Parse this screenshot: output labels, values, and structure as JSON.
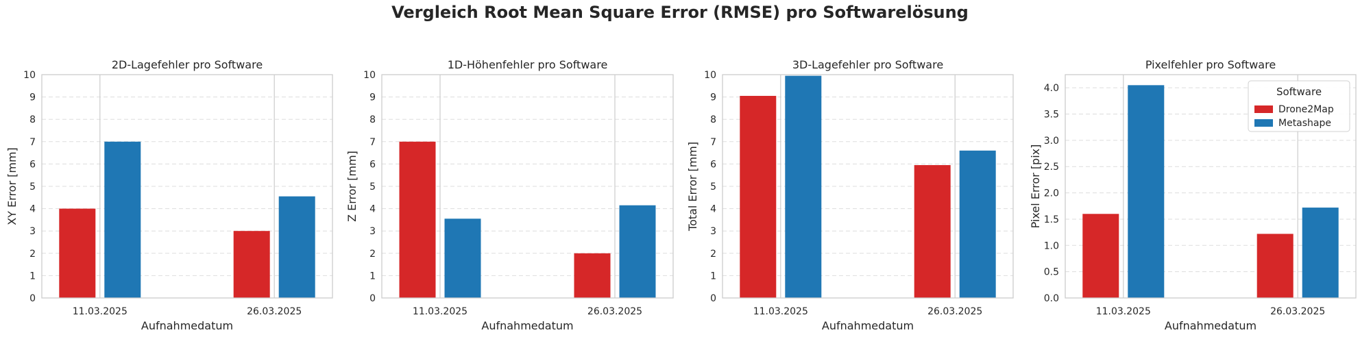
{
  "suptitle": "Vergleich Root Mean Square Error (RMSE) pro Softwarelösung",
  "colors": {
    "Drone2Map": "#d62728",
    "Metashape": "#1f77b4",
    "grid": "#dddddd",
    "axis": "#cccccc",
    "text": "#262626"
  },
  "legend": {
    "title": "Software",
    "entries": [
      "Drone2Map",
      "Metashape"
    ],
    "placement": "upper-right",
    "in_chart": 3
  },
  "chart_data": [
    {
      "type": "bar",
      "title": "2D-Lagefehler pro Software",
      "xlabel": "Aufnahmedatum",
      "ylabel": "XY Error [mm]",
      "categories": [
        "11.03.2025",
        "26.03.2025"
      ],
      "series": [
        {
          "name": "Drone2Map",
          "values": [
            4,
            3
          ]
        },
        {
          "name": "Metashape",
          "values": [
            7,
            4.55
          ]
        }
      ],
      "ylim": [
        0,
        10
      ],
      "yticks": [
        "0",
        "1",
        "2",
        "3",
        "4",
        "5",
        "6",
        "7",
        "8",
        "9",
        "10"
      ],
      "grid": true
    },
    {
      "type": "bar",
      "title": "1D-Höhenfehler pro Software",
      "xlabel": "Aufnahmedatum",
      "ylabel": "Z Error [mm]",
      "categories": [
        "11.03.2025",
        "26.03.2025"
      ],
      "series": [
        {
          "name": "Drone2Map",
          "values": [
            7,
            2
          ]
        },
        {
          "name": "Metashape",
          "values": [
            3.55,
            4.15
          ]
        }
      ],
      "ylim": [
        0,
        10
      ],
      "yticks": [
        "0",
        "1",
        "2",
        "3",
        "4",
        "5",
        "6",
        "7",
        "8",
        "9",
        "10"
      ],
      "grid": true
    },
    {
      "type": "bar",
      "title": "3D-Lagefehler pro Software",
      "xlabel": "Aufnahmedatum",
      "ylabel": "Total Error [mm]",
      "categories": [
        "11.03.2025",
        "26.03.2025"
      ],
      "series": [
        {
          "name": "Drone2Map",
          "values": [
            9.05,
            5.95
          ]
        },
        {
          "name": "Metashape",
          "values": [
            9.95,
            6.6
          ]
        }
      ],
      "ylim": [
        0,
        10
      ],
      "yticks": [
        "0",
        "1",
        "2",
        "3",
        "4",
        "5",
        "6",
        "7",
        "8",
        "9",
        "10"
      ],
      "grid": true
    },
    {
      "type": "bar",
      "title": "Pixelfehler pro Software",
      "xlabel": "Aufnahmedatum",
      "ylabel": "Pixel Error [pix]",
      "categories": [
        "11.03.2025",
        "26.03.2025"
      ],
      "series": [
        {
          "name": "Drone2Map",
          "values": [
            1.6,
            1.22
          ]
        },
        {
          "name": "Metashape",
          "values": [
            4.05,
            1.72
          ]
        }
      ],
      "ylim": [
        0,
        4.25
      ],
      "yticks": [
        "0.0",
        "0.5",
        "1.0",
        "1.5",
        "2.0",
        "2.5",
        "3.0",
        "3.5",
        "4.0"
      ],
      "grid": true
    }
  ]
}
